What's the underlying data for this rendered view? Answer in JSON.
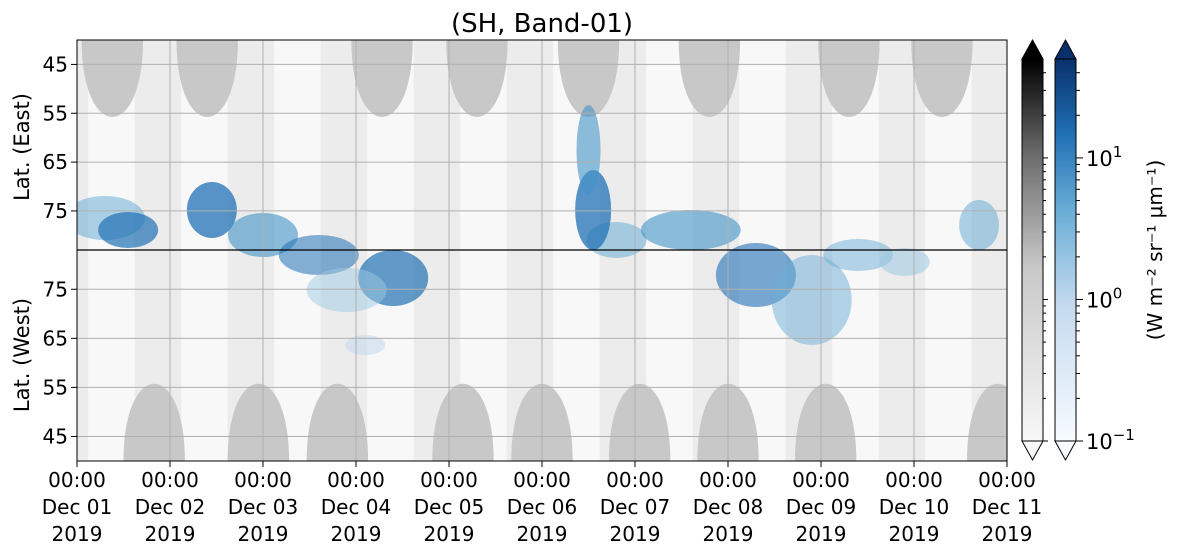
{
  "chart_data": {
    "type": "heatmap",
    "title": "(SH, Band-01)",
    "ylabel_east": "Lat. (East)",
    "ylabel_west": "Lat. (West)",
    "x_ticks": [
      {
        "time": "00:00",
        "date": "Dec 01",
        "year": "2019"
      },
      {
        "time": "00:00",
        "date": "Dec 02",
        "year": "2019"
      },
      {
        "time": "00:00",
        "date": "Dec 03",
        "year": "2019"
      },
      {
        "time": "00:00",
        "date": "Dec 04",
        "year": "2019"
      },
      {
        "time": "00:00",
        "date": "Dec 05",
        "year": "2019"
      },
      {
        "time": "00:00",
        "date": "Dec 06",
        "year": "2019"
      },
      {
        "time": "00:00",
        "date": "Dec 07",
        "year": "2019"
      },
      {
        "time": "00:00",
        "date": "Dec 08",
        "year": "2019"
      },
      {
        "time": "00:00",
        "date": "Dec 09",
        "year": "2019"
      },
      {
        "time": "00:00",
        "date": "Dec 10",
        "year": "2019"
      },
      {
        "time": "00:00",
        "date": "Dec 11",
        "year": "2019"
      }
    ],
    "y_ticks_east": [
      "45",
      "55",
      "65",
      "75"
    ],
    "y_ticks_west": [
      "75",
      "65",
      "55",
      "45"
    ],
    "grid": true,
    "colorbar_label": "(W m⁻² sr⁻¹ μm⁻¹)",
    "colorbar_scale": "log",
    "colorbar_ticks": [
      {
        "base": "10",
        "exp": "1"
      },
      {
        "base": "10",
        "exp": "0"
      },
      {
        "base": "10",
        "exp": "−1"
      }
    ],
    "colorbar_range": [
      0.1,
      50
    ],
    "colormaps": [
      "Greys",
      "Blues"
    ],
    "colors": {
      "blue_high": "#08306b",
      "blue_mid": "#4292c6",
      "blue_low": "#deebf7",
      "grey_mask": "#c8c8c8"
    }
  }
}
